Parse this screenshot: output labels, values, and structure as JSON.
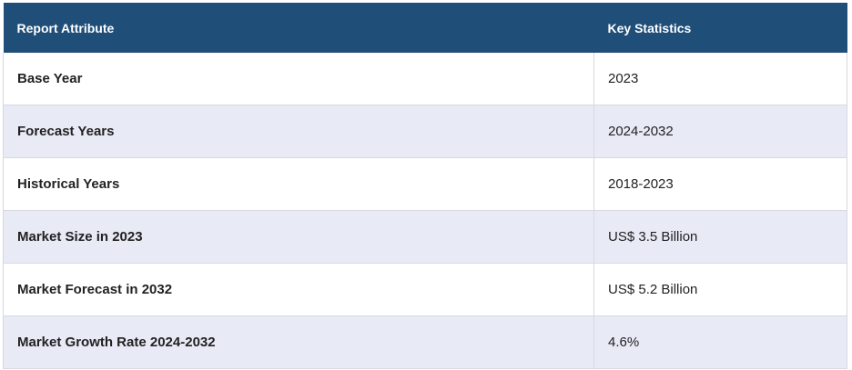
{
  "table": {
    "header": [
      "Report Attribute",
      "Key Statistics"
    ],
    "rows": [
      [
        "Base Year",
        "2023"
      ],
      [
        "Forecast Years",
        "2024-2032"
      ],
      [
        "Historical Years",
        "2018-2023"
      ],
      [
        "Market Size in 2023",
        "US$ 3.5 Billion"
      ],
      [
        "Market Forecast in 2032",
        "US$ 5.2 Billion"
      ],
      [
        "Market Growth Rate 2024-2032",
        "4.6%"
      ]
    ]
  }
}
